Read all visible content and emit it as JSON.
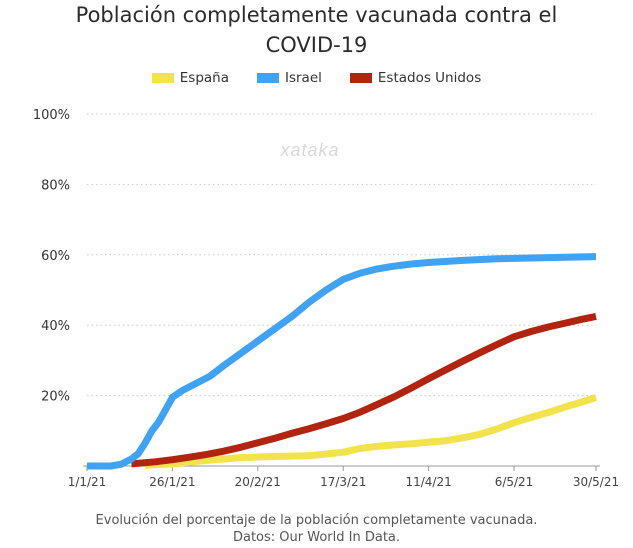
{
  "chart_data": {
    "type": "line",
    "title_line1": "Población completamente vacunada contra el",
    "title_line2": "COVID-19",
    "caption_line1": "Evolución del porcentaje de la población completamente vacunada.",
    "caption_line2": "Datos: Our World In Data.",
    "watermark": "xataka",
    "x_ticks": [
      "1/1/21",
      "26/1/21",
      "20/2/21",
      "17/3/21",
      "11/4/21",
      "6/5/21",
      "30/5/21"
    ],
    "x_tick_days": [
      0,
      25,
      50,
      75,
      100,
      125,
      149
    ],
    "x_range_days": [
      0,
      149
    ],
    "y_ticks": [
      "20%",
      "40%",
      "60%",
      "80%",
      "100%"
    ],
    "y_tick_values": [
      20,
      40,
      60,
      80,
      100
    ],
    "ylim": [
      0,
      100
    ],
    "grid": "horizontal-dashed",
    "legend_position": "top-center",
    "series": [
      {
        "name": "España",
        "color": "#f2e24c",
        "points": [
          [
            17,
            0.2
          ],
          [
            25,
            0.6
          ],
          [
            35,
            1.6
          ],
          [
            45,
            2.4
          ],
          [
            55,
            2.7
          ],
          [
            65,
            2.9
          ],
          [
            70,
            3.4
          ],
          [
            75,
            3.9
          ],
          [
            80,
            5.0
          ],
          [
            85,
            5.6
          ],
          [
            90,
            6.0
          ],
          [
            95,
            6.3
          ],
          [
            100,
            6.8
          ],
          [
            105,
            7.2
          ],
          [
            110,
            8.0
          ],
          [
            115,
            9.0
          ],
          [
            120,
            10.5
          ],
          [
            125,
            12.3
          ],
          [
            130,
            13.8
          ],
          [
            135,
            15.2
          ],
          [
            140,
            16.8
          ],
          [
            145,
            18.2
          ],
          [
            149,
            19.5
          ]
        ]
      },
      {
        "name": "Israel",
        "color": "#3fa2f2",
        "points": [
          [
            0,
            0
          ],
          [
            7,
            0
          ],
          [
            10,
            0.5
          ],
          [
            13,
            2.0
          ],
          [
            15,
            3.5
          ],
          [
            17,
            6.5
          ],
          [
            19,
            10.0
          ],
          [
            21,
            12.5
          ],
          [
            23,
            16.0
          ],
          [
            25,
            19.5
          ],
          [
            28,
            21.5
          ],
          [
            32,
            23.5
          ],
          [
            36,
            25.5
          ],
          [
            40,
            28.5
          ],
          [
            45,
            32.0
          ],
          [
            50,
            35.5
          ],
          [
            55,
            39.0
          ],
          [
            60,
            42.5
          ],
          [
            65,
            46.5
          ],
          [
            70,
            50.0
          ],
          [
            75,
            53.0
          ],
          [
            80,
            54.8
          ],
          [
            85,
            56.0
          ],
          [
            90,
            56.8
          ],
          [
            95,
            57.4
          ],
          [
            100,
            57.8
          ],
          [
            110,
            58.4
          ],
          [
            120,
            58.9
          ],
          [
            130,
            59.1
          ],
          [
            140,
            59.3
          ],
          [
            149,
            59.5
          ]
        ]
      },
      {
        "name": "Estados Unidos",
        "color": "#b02410",
        "points": [
          [
            13,
            0.6
          ],
          [
            20,
            1.2
          ],
          [
            25,
            1.8
          ],
          [
            30,
            2.5
          ],
          [
            35,
            3.3
          ],
          [
            40,
            4.2
          ],
          [
            45,
            5.3
          ],
          [
            50,
            6.6
          ],
          [
            55,
            7.9
          ],
          [
            60,
            9.3
          ],
          [
            65,
            10.6
          ],
          [
            70,
            12.0
          ],
          [
            75,
            13.5
          ],
          [
            80,
            15.3
          ],
          [
            85,
            17.5
          ],
          [
            90,
            19.7
          ],
          [
            95,
            22.2
          ],
          [
            100,
            24.8
          ],
          [
            105,
            27.3
          ],
          [
            110,
            29.8
          ],
          [
            115,
            32.2
          ],
          [
            120,
            34.5
          ],
          [
            125,
            36.7
          ],
          [
            130,
            38.2
          ],
          [
            135,
            39.5
          ],
          [
            140,
            40.6
          ],
          [
            145,
            41.7
          ],
          [
            149,
            42.5
          ]
        ]
      }
    ]
  }
}
